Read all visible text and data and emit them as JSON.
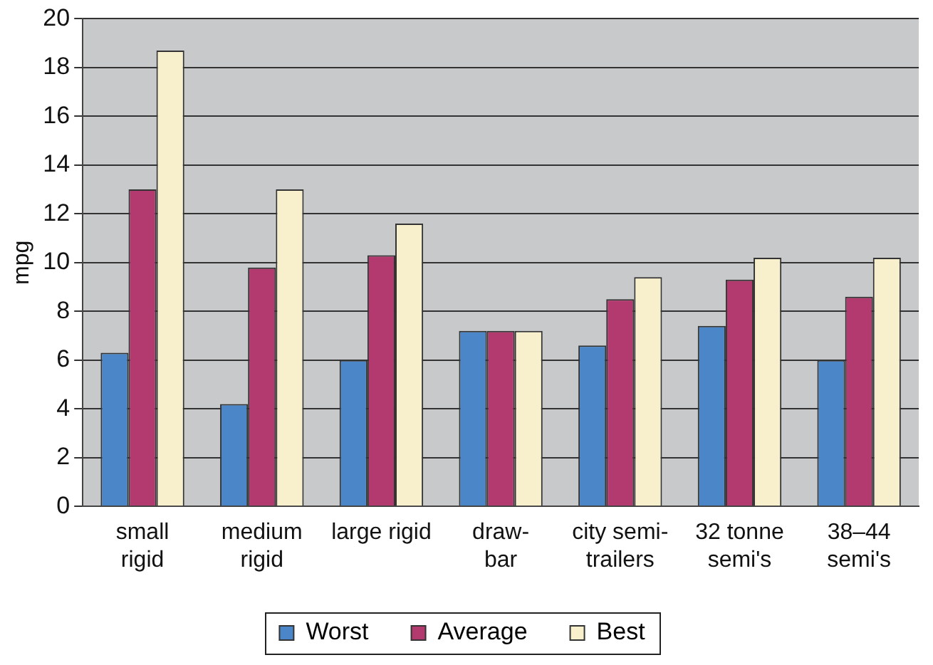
{
  "chart_data": {
    "type": "bar",
    "ylabel": "mpg",
    "categories": [
      "small rigid",
      "medium rigid",
      "large rigid",
      "draw-bar",
      "city semi-trailers",
      "32 tonne semi's",
      "38–44 semi's"
    ],
    "series": [
      {
        "name": "Worst",
        "color": "#4a86c8",
        "values": [
          6.3,
          4.2,
          6.0,
          7.2,
          6.6,
          7.4,
          6.0
        ]
      },
      {
        "name": "Average",
        "color": "#b23a6e",
        "values": [
          13.0,
          9.8,
          10.3,
          7.2,
          8.5,
          9.3,
          8.6
        ]
      },
      {
        "name": "Best",
        "color": "#f8f0cc",
        "values": [
          18.7,
          13.0,
          11.6,
          7.2,
          9.4,
          10.2,
          10.2
        ]
      }
    ],
    "ylim": [
      0,
      20
    ],
    "yticks": [
      0,
      2,
      4,
      6,
      8,
      10,
      12,
      14,
      16,
      18,
      20
    ],
    "grid": "y",
    "legend": "bottom"
  }
}
